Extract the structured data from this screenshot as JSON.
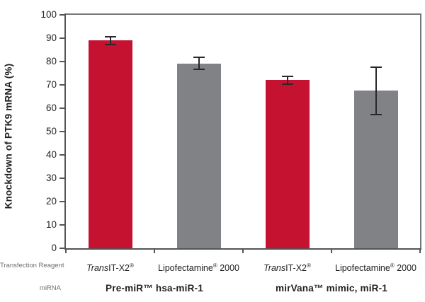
{
  "chart_data": {
    "type": "bar",
    "title": "",
    "ylabel": "Knockdown of PTK9 mRNA (%)",
    "ylim": [
      0,
      100
    ],
    "ytick_step": 10,
    "grid": false,
    "legend": null,
    "categories": [
      "TransIT-X2®",
      "Lipofectamine® 2000",
      "TransIT-X2®",
      "Lipofectamine® 2000"
    ],
    "bars": [
      {
        "value": 89,
        "err_plus": 2,
        "err_minus": 2,
        "color": "#C41230",
        "label_parts": [
          {
            "t": "Trans",
            "style": "italic"
          },
          {
            "t": "IT-X2"
          },
          {
            "t": "®",
            "style": "sup"
          }
        ]
      },
      {
        "value": 79,
        "err_plus": 3,
        "err_minus": 2.5,
        "color": "#818285",
        "label_parts": [
          {
            "t": "Lipofectamine"
          },
          {
            "t": "®",
            "style": "sup"
          },
          {
            "t": " 2000"
          }
        ]
      },
      {
        "value": 72,
        "err_plus": 2,
        "err_minus": 2,
        "color": "#C41230",
        "label_parts": [
          {
            "t": "Trans",
            "style": "italic"
          },
          {
            "t": "IT-X2"
          },
          {
            "t": "®",
            "style": "sup"
          }
        ]
      },
      {
        "value": 67.5,
        "err_plus": 10.5,
        "err_minus": 10.5,
        "color": "#818285",
        "label_parts": [
          {
            "t": "Lipofectamine"
          },
          {
            "t": "®",
            "style": "sup"
          },
          {
            "t": " 2000"
          }
        ]
      }
    ],
    "groups": [
      {
        "label": "Pre-miR™ hsa-miR-1",
        "span": 2
      },
      {
        "label": "mirVana™ mimic, miR-1",
        "span": 2
      }
    ],
    "row_labels": {
      "reagent": "Transfection Reagent",
      "mirna": "miRNA"
    },
    "colors": {
      "red_bar": "#C41230",
      "gray_bar": "#818285",
      "axis": "#545557",
      "frame": "#77787B",
      "error_bar": "#2B2728",
      "tick_label": "#231F20",
      "muted_label": "#6D6E71"
    }
  }
}
